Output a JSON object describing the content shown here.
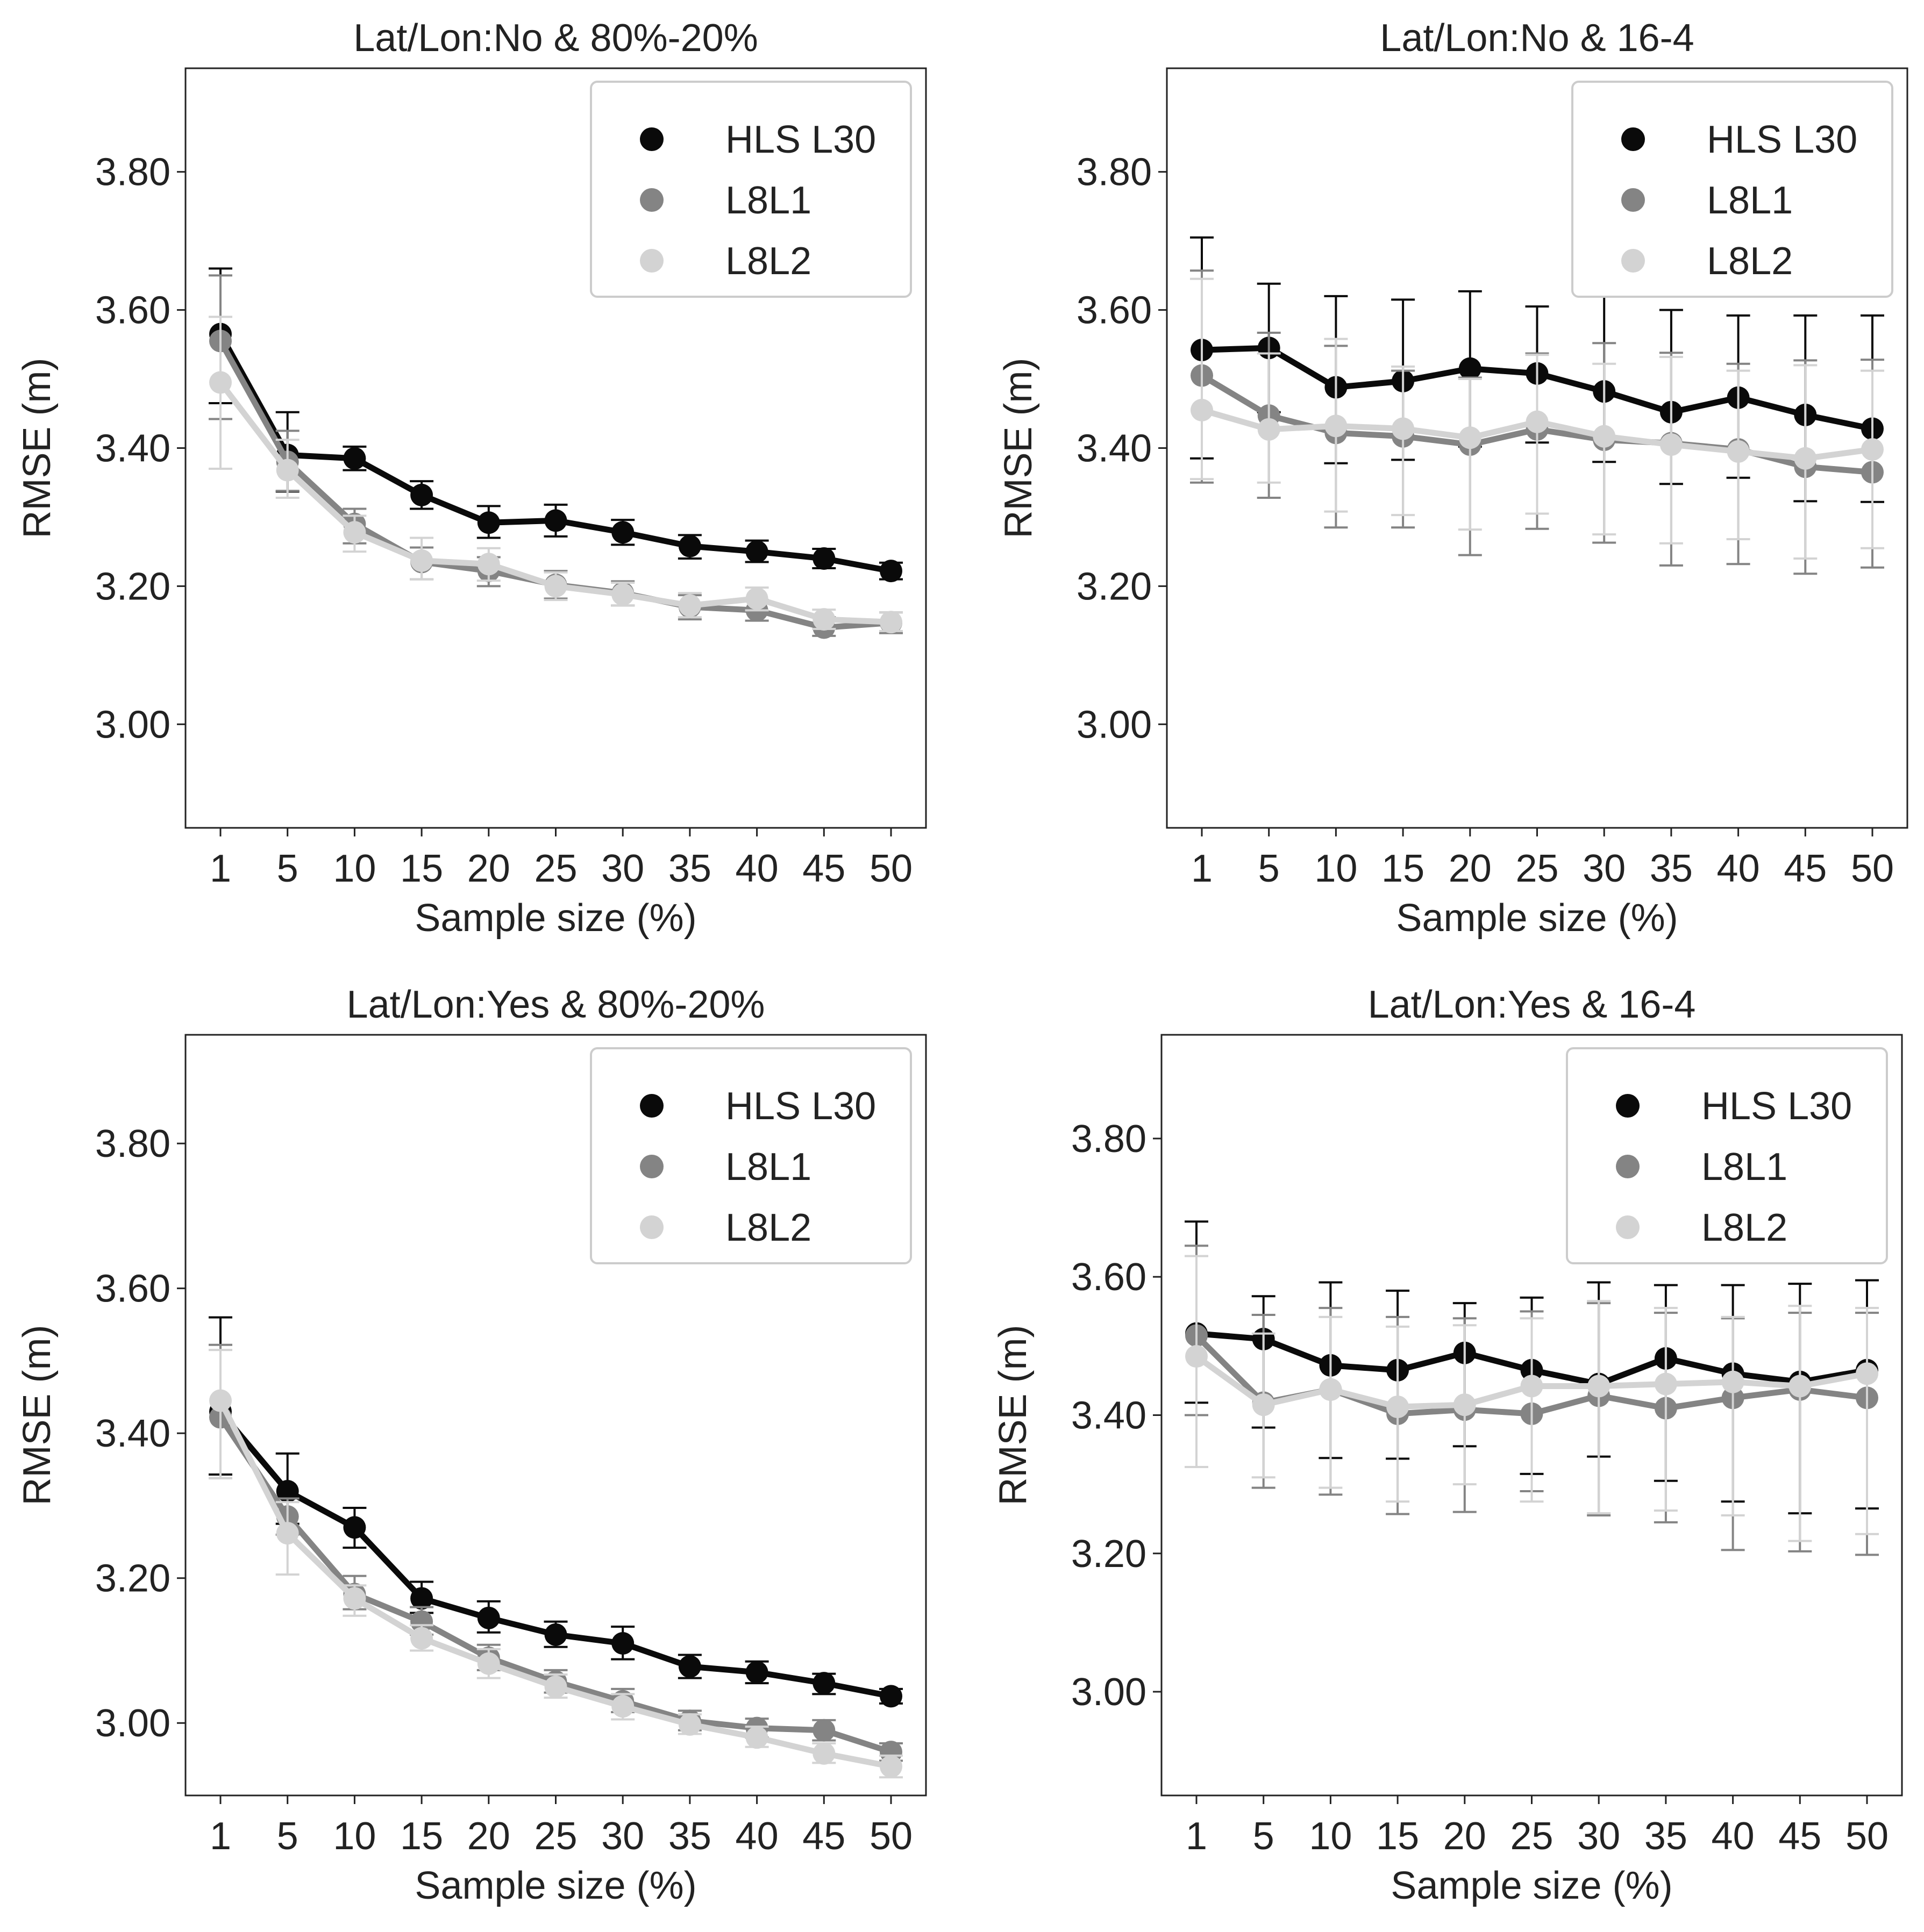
{
  "chart_data": [
    {
      "type": "line",
      "title": "Lat/Lon:No & 80%-20%",
      "xlabel": "Sample size (%)",
      "ylabel": "RMSE (m)",
      "ylim": [
        2.85,
        3.95
      ],
      "yticks": [
        "3.00",
        "3.20",
        "3.40",
        "3.60",
        "3.80"
      ],
      "legend_position": "top-right",
      "categories": [
        "1",
        "5",
        "10",
        "15",
        "20",
        "25",
        "30",
        "35",
        "40",
        "45",
        "50"
      ],
      "series": [
        {
          "name": "HLS L30",
          "color": "#0a0a0a",
          "values": [
            3.565,
            3.39,
            3.385,
            3.332,
            3.292,
            3.295,
            3.278,
            3.258,
            3.25,
            3.24,
            3.222
          ],
          "lower": [
            3.465,
            3.337,
            3.368,
            3.312,
            3.27,
            3.272,
            3.26,
            3.24,
            3.235,
            3.226,
            3.21
          ],
          "upper": [
            3.66,
            3.452,
            3.402,
            3.352,
            3.316,
            3.318,
            3.296,
            3.274,
            3.266,
            3.254,
            3.234
          ]
        },
        {
          "name": "L8L1",
          "color": "#848484",
          "values": [
            3.555,
            3.38,
            3.29,
            3.235,
            3.222,
            3.202,
            3.19,
            3.17,
            3.165,
            3.14,
            3.147
          ],
          "lower": [
            3.442,
            3.338,
            3.262,
            3.21,
            3.2,
            3.182,
            3.172,
            3.152,
            3.15,
            3.128,
            3.132
          ],
          "upper": [
            3.65,
            3.425,
            3.312,
            3.256,
            3.242,
            3.222,
            3.207,
            3.187,
            3.18,
            3.155,
            3.162
          ]
        },
        {
          "name": "L8L2",
          "color": "#d3d3d3",
          "values": [
            3.495,
            3.368,
            3.278,
            3.237,
            3.232,
            3.2,
            3.188,
            3.172,
            3.182,
            3.152,
            3.148
          ],
          "lower": [
            3.37,
            3.328,
            3.25,
            3.21,
            3.208,
            3.18,
            3.172,
            3.155,
            3.165,
            3.138,
            3.135
          ],
          "upper": [
            3.59,
            3.412,
            3.302,
            3.27,
            3.255,
            3.22,
            3.205,
            3.19,
            3.198,
            3.166,
            3.162
          ]
        }
      ]
    },
    {
      "type": "line",
      "title": "Lat/Lon:No & 16-4",
      "xlabel": "Sample size (%)",
      "ylabel": "RMSE (m)",
      "ylim": [
        2.85,
        3.95
      ],
      "yticks": [
        "3.00",
        "3.20",
        "3.40",
        "3.60",
        "3.80"
      ],
      "legend_position": "top-right",
      "categories": [
        "1",
        "5",
        "10",
        "15",
        "20",
        "25",
        "30",
        "35",
        "40",
        "45",
        "50"
      ],
      "series": [
        {
          "name": "HLS L30",
          "color": "#0a0a0a",
          "values": [
            3.542,
            3.545,
            3.488,
            3.497,
            3.515,
            3.508,
            3.482,
            3.452,
            3.473,
            3.448,
            3.428
          ],
          "lower": [
            3.385,
            3.452,
            3.378,
            3.383,
            3.402,
            3.408,
            3.38,
            3.348,
            3.357,
            3.323,
            3.322
          ],
          "upper": [
            3.705,
            3.638,
            3.62,
            3.615,
            3.627,
            3.605,
            3.625,
            3.6,
            3.592,
            3.592,
            3.592
          ]
        },
        {
          "name": "L8L1",
          "color": "#848484",
          "values": [
            3.505,
            3.447,
            3.422,
            3.417,
            3.405,
            3.427,
            3.412,
            3.407,
            3.398,
            3.373,
            3.365
          ],
          "lower": [
            3.35,
            3.328,
            3.285,
            3.285,
            3.245,
            3.283,
            3.263,
            3.23,
            3.232,
            3.218,
            3.227
          ],
          "upper": [
            3.657,
            3.567,
            3.548,
            3.512,
            3.502,
            3.537,
            3.552,
            3.538,
            3.522,
            3.527,
            3.528
          ]
        },
        {
          "name": "L8L2",
          "color": "#d3d3d3",
          "values": [
            3.455,
            3.427,
            3.432,
            3.428,
            3.415,
            3.438,
            3.417,
            3.405,
            3.395,
            3.385,
            3.398
          ],
          "lower": [
            3.355,
            3.35,
            3.308,
            3.303,
            3.282,
            3.305,
            3.275,
            3.262,
            3.268,
            3.24,
            3.255
          ],
          "upper": [
            3.645,
            3.537,
            3.558,
            3.518,
            3.5,
            3.535,
            3.522,
            3.532,
            3.512,
            3.52,
            3.512
          ]
        }
      ]
    },
    {
      "type": "line",
      "title": "Lat/Lon:Yes & 80%-20%",
      "xlabel": "Sample size (%)",
      "ylabel": "RMSE (m)",
      "ylim": [
        2.9,
        3.95
      ],
      "yticks": [
        "3.00",
        "3.20",
        "3.40",
        "3.60",
        "3.80"
      ],
      "legend_position": "top-right",
      "categories": [
        "1",
        "5",
        "10",
        "15",
        "20",
        "25",
        "30",
        "35",
        "40",
        "45",
        "50"
      ],
      "series": [
        {
          "name": "HLS L30",
          "color": "#0a0a0a",
          "values": [
            3.43,
            3.32,
            3.27,
            3.172,
            3.145,
            3.122,
            3.11,
            3.078,
            3.07,
            3.055,
            3.037
          ],
          "lower": [
            3.343,
            3.275,
            3.242,
            3.152,
            3.125,
            3.105,
            3.088,
            3.062,
            3.055,
            3.04,
            3.027
          ],
          "upper": [
            3.56,
            3.372,
            3.297,
            3.195,
            3.168,
            3.14,
            3.133,
            3.094,
            3.085,
            3.068,
            3.047
          ]
        },
        {
          "name": "L8L1",
          "color": "#848484",
          "values": [
            3.422,
            3.285,
            3.178,
            3.14,
            3.09,
            3.057,
            3.03,
            3.003,
            2.993,
            2.99,
            2.96
          ],
          "lower": [
            3.338,
            3.26,
            3.157,
            3.122,
            3.073,
            3.042,
            3.015,
            2.99,
            2.98,
            2.976,
            2.948
          ],
          "upper": [
            3.522,
            3.31,
            3.203,
            3.16,
            3.108,
            3.073,
            3.047,
            3.017,
            3.006,
            3.004,
            2.972
          ]
        },
        {
          "name": "L8L2",
          "color": "#d3d3d3",
          "values": [
            3.445,
            3.262,
            3.172,
            3.117,
            3.082,
            3.05,
            3.023,
            2.998,
            2.98,
            2.958,
            2.94
          ],
          "lower": [
            3.338,
            3.205,
            3.148,
            3.1,
            3.062,
            3.035,
            3.005,
            2.985,
            2.967,
            2.945,
            2.925
          ],
          "upper": [
            3.515,
            3.305,
            3.19,
            3.135,
            3.102,
            3.067,
            3.04,
            3.012,
            2.995,
            2.972,
            2.955
          ]
        }
      ]
    },
    {
      "type": "line",
      "title": "Lat/Lon:Yes & 16-4",
      "xlabel": "Sample size (%)",
      "ylabel": "RMSE (m)",
      "ylim": [
        2.85,
        3.95
      ],
      "yticks": [
        "3.00",
        "3.20",
        "3.40",
        "3.60",
        "3.80"
      ],
      "legend_position": "top-right",
      "categories": [
        "1",
        "5",
        "10",
        "15",
        "20",
        "25",
        "30",
        "35",
        "40",
        "45",
        "50"
      ],
      "series": [
        {
          "name": "HLS L30",
          "color": "#0a0a0a",
          "values": [
            3.518,
            3.51,
            3.472,
            3.465,
            3.49,
            3.465,
            3.445,
            3.482,
            3.46,
            3.448,
            3.465
          ],
          "lower": [
            3.418,
            3.382,
            3.338,
            3.337,
            3.355,
            3.315,
            3.34,
            3.305,
            3.275,
            3.258,
            3.265
          ],
          "upper": [
            3.68,
            3.572,
            3.592,
            3.58,
            3.562,
            3.57,
            3.592,
            3.588,
            3.588,
            3.59,
            3.595
          ]
        },
        {
          "name": "L8L1",
          "color": "#848484",
          "values": [
            3.515,
            3.418,
            3.437,
            3.402,
            3.408,
            3.402,
            3.428,
            3.41,
            3.425,
            3.437,
            3.425
          ],
          "lower": [
            3.4,
            3.295,
            3.285,
            3.257,
            3.26,
            3.29,
            3.255,
            3.245,
            3.205,
            3.203,
            3.198
          ],
          "upper": [
            3.645,
            3.545,
            3.555,
            3.542,
            3.54,
            3.55,
            3.562,
            3.548,
            3.54,
            3.548,
            3.548
          ]
        },
        {
          "name": "L8L2",
          "color": "#d3d3d3",
          "values": [
            3.485,
            3.415,
            3.437,
            3.412,
            3.415,
            3.442,
            3.442,
            3.445,
            3.448,
            3.442,
            3.46
          ],
          "lower": [
            3.325,
            3.31,
            3.295,
            3.275,
            3.3,
            3.275,
            3.258,
            3.262,
            3.255,
            3.218,
            3.228
          ],
          "upper": [
            3.63,
            3.518,
            3.542,
            3.528,
            3.53,
            3.54,
            3.565,
            3.555,
            3.542,
            3.558,
            3.555
          ]
        }
      ]
    }
  ]
}
